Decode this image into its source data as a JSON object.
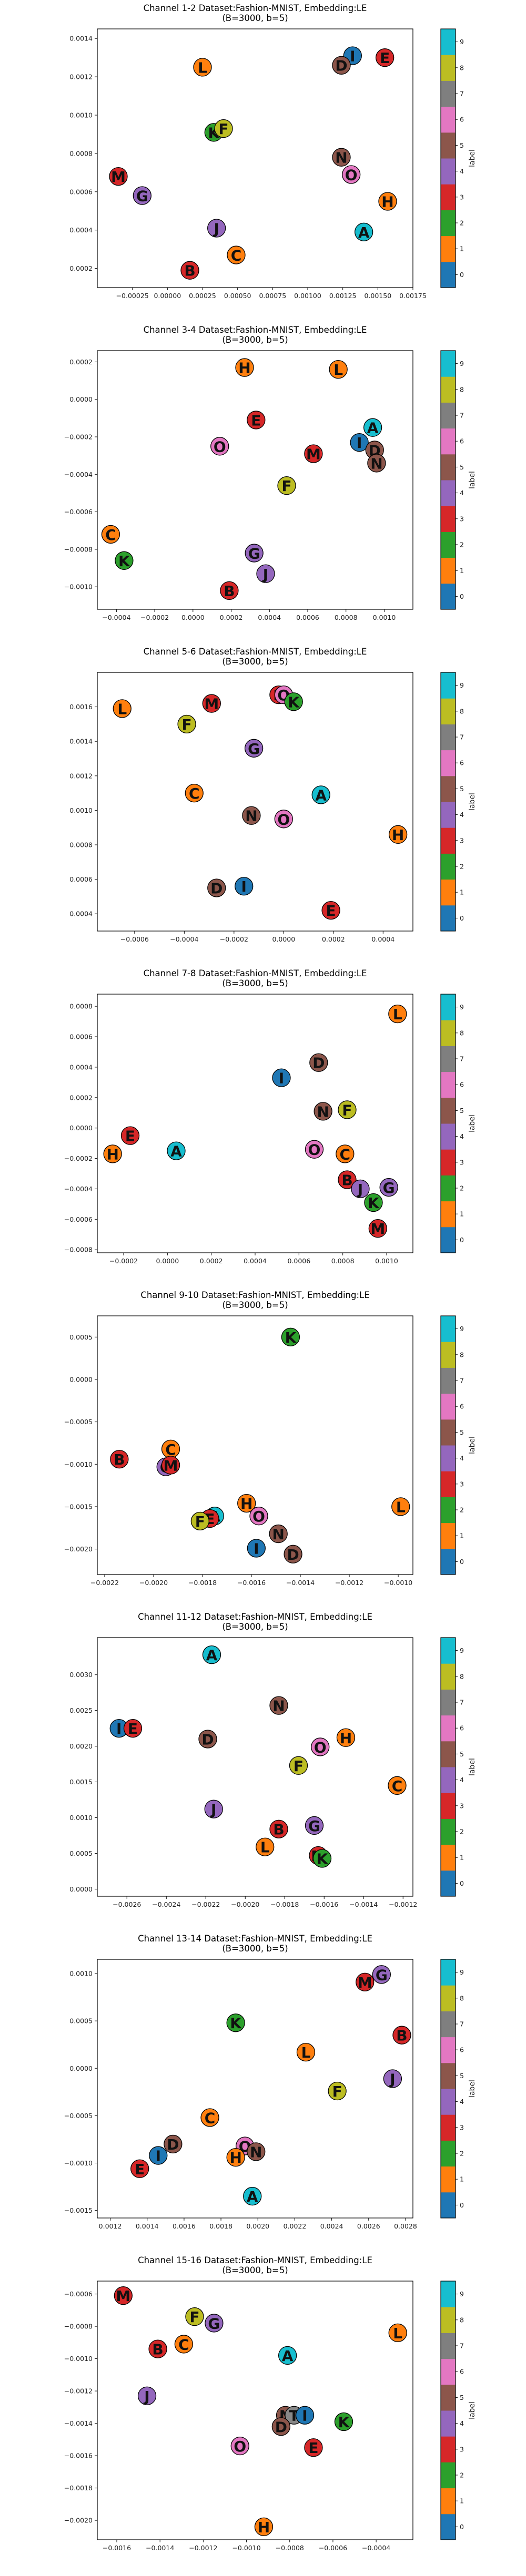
{
  "figure": {
    "colorbar": {
      "label": "label",
      "ticks": [
        0,
        1,
        2,
        3,
        4,
        5,
        6,
        7,
        8,
        9
      ],
      "colors": [
        "#1f77b4",
        "#ff7f0e",
        "#2ca02c",
        "#d62728",
        "#9467bd",
        "#8c564b",
        "#e377c2",
        "#7f7f7f",
        "#bcbd22",
        "#17becf"
      ]
    },
    "letter_colors": {
      "A": "#17becf",
      "B": "#d62728",
      "C": "#ff7f0e",
      "D": "#8c564b",
      "E": "#d62728",
      "F": "#bcbd22",
      "G": "#9467bd",
      "H": "#ff7f0e",
      "I": "#1f77b4",
      "J": "#9467bd",
      "K": "#2ca02c",
      "L": "#ff7f0e",
      "M": "#d62728",
      "N": "#8c564b",
      "O": "#e377c2"
    }
  },
  "chart_data": [
    {
      "type": "scatter",
      "title": "Channel 1-2 Dataset:Fashion-MNIST, Embedding:LE\n(B=3000, b=5)",
      "xlim": [
        -0.0005,
        0.00175
      ],
      "ylim": [
        0.0001,
        0.00145
      ],
      "xticks": [
        -0.00025,
        0.0,
        0.00025,
        0.0005,
        0.00075,
        0.001,
        0.00125,
        0.0015,
        0.00175
      ],
      "xtick_labels": [
        "−0.00025",
        "0.00000",
        "0.00025",
        "0.00050",
        "0.00075",
        "0.00100",
        "0.00125",
        "0.00150",
        "0.00175"
      ],
      "yticks": [
        0.0002,
        0.0004,
        0.0006,
        0.0008,
        0.001,
        0.0012,
        0.0014
      ],
      "ytick_labels": [
        "0.0002",
        "0.0004",
        "0.0006",
        "0.0008",
        "0.0010",
        "0.0012",
        "0.0014"
      ],
      "points": [
        {
          "label": "I",
          "x": 0.00132,
          "y": 0.00131
        },
        {
          "label": "D",
          "x": 0.00124,
          "y": 0.00126
        },
        {
          "label": "E",
          "x": 0.00155,
          "y": 0.0013
        },
        {
          "label": "L",
          "x": 0.00025,
          "y": 0.00125
        },
        {
          "label": "K",
          "x": 0.00033,
          "y": 0.00091
        },
        {
          "label": "F",
          "x": 0.0004,
          "y": 0.00093
        },
        {
          "label": "M",
          "x": -0.00035,
          "y": 0.00068
        },
        {
          "label": "G",
          "x": -0.00018,
          "y": 0.00058
        },
        {
          "label": "N",
          "x": 0.00124,
          "y": 0.00078
        },
        {
          "label": "O",
          "x": 0.00131,
          "y": 0.00069
        },
        {
          "label": "H",
          "x": 0.00157,
          "y": 0.00055
        },
        {
          "label": "J",
          "x": 0.00035,
          "y": 0.00041
        },
        {
          "label": "A",
          "x": 0.0014,
          "y": 0.00039
        },
        {
          "label": "C",
          "x": 0.00049,
          "y": 0.00027
        },
        {
          "label": "B",
          "x": 0.00016,
          "y": 0.00019
        }
      ]
    },
    {
      "type": "scatter",
      "title": "Channel 3-4 Dataset:Fashion-MNIST, Embedding:LE\n(B=3000, b=5)",
      "xlim": [
        -0.0005,
        0.00115
      ],
      "ylim": [
        -0.00112,
        0.00026
      ],
      "xticks": [
        -0.0004,
        -0.0002,
        0.0,
        0.0002,
        0.0004,
        0.0006,
        0.0008,
        0.001
      ],
      "xtick_labels": [
        "−0.0004",
        "−0.0002",
        "0.0000",
        "0.0002",
        "0.0004",
        "0.0006",
        "0.0008",
        "0.0010"
      ],
      "yticks": [
        -0.001,
        -0.0008,
        -0.0006,
        -0.0004,
        -0.0002,
        0.0,
        0.0002
      ],
      "ytick_labels": [
        "−0.0010",
        "−0.0008",
        "−0.0006",
        "−0.0004",
        "−0.0002",
        "0.0000",
        "0.0002"
      ],
      "points": [
        {
          "label": "H",
          "x": 0.00027,
          "y": 0.00017
        },
        {
          "label": "L",
          "x": 0.00076,
          "y": 0.00016
        },
        {
          "label": "E",
          "x": 0.00033,
          "y": -0.00011
        },
        {
          "label": "A",
          "x": 0.00094,
          "y": -0.00015
        },
        {
          "label": "O",
          "x": 0.00014,
          "y": -0.00025
        },
        {
          "label": "M",
          "x": 0.00063,
          "y": -0.00029
        },
        {
          "label": "I",
          "x": 0.00087,
          "y": -0.00023
        },
        {
          "label": "D",
          "x": 0.00095,
          "y": -0.00027
        },
        {
          "label": "N",
          "x": 0.00096,
          "y": -0.00034
        },
        {
          "label": "F",
          "x": 0.00049,
          "y": -0.00046
        },
        {
          "label": "C",
          "x": -0.00043,
          "y": -0.00072
        },
        {
          "label": "G",
          "x": 0.00032,
          "y": -0.00082
        },
        {
          "label": "K",
          "x": -0.00036,
          "y": -0.00086
        },
        {
          "label": "J",
          "x": 0.00038,
          "y": -0.00093
        },
        {
          "label": "B",
          "x": 0.00019,
          "y": -0.00102
        }
      ]
    },
    {
      "type": "scatter",
      "title": "Channel 5-6 Dataset:Fashion-MNIST, Embedding:LE\n(B=3000, b=5)",
      "xlim": [
        -0.00075,
        0.00052
      ],
      "ylim": [
        0.0003,
        0.0018
      ],
      "xticks": [
        -0.0006,
        -0.0004,
        -0.0002,
        0.0,
        0.0002,
        0.0004
      ],
      "xtick_labels": [
        "−0.0006",
        "−0.0004",
        "−0.0002",
        "0.0000",
        "0.0002",
        "0.0004"
      ],
      "yticks": [
        0.0004,
        0.0006,
        0.0008,
        0.001,
        0.0012,
        0.0014,
        0.0016
      ],
      "ytick_labels": [
        "0.0004",
        "0.0006",
        "0.0008",
        "0.0010",
        "0.0012",
        "0.0014",
        "0.0016"
      ],
      "points": [
        {
          "label": "B",
          "x": -2e-05,
          "y": 0.00167
        },
        {
          "label": "O",
          "x": 0.0,
          "y": 0.00167
        },
        {
          "label": "K",
          "x": 4e-05,
          "y": 0.00163
        },
        {
          "label": "M",
          "x": -0.00029,
          "y": 0.00162
        },
        {
          "label": "L",
          "x": -0.00065,
          "y": 0.00159
        },
        {
          "label": "F",
          "x": -0.00039,
          "y": 0.0015
        },
        {
          "label": "G",
          "x": -0.00012,
          "y": 0.00136
        },
        {
          "label": "C",
          "x": -0.00036,
          "y": 0.0011
        },
        {
          "label": "A",
          "x": 0.00015,
          "y": 0.00109
        },
        {
          "label": "N",
          "x": -0.00013,
          "y": 0.00097
        },
        {
          "label": "O",
          "x": 0.0,
          "y": 0.00095
        },
        {
          "label": "H",
          "x": 0.00046,
          "y": 0.00086
        },
        {
          "label": "D",
          "x": -0.00027,
          "y": 0.00055
        },
        {
          "label": "I",
          "x": -0.00016,
          "y": 0.00056
        },
        {
          "label": "E",
          "x": 0.00019,
          "y": 0.00042
        }
      ]
    },
    {
      "type": "scatter",
      "title": "Channel 7-8 Dataset:Fashion-MNIST, Embedding:LE\n(B=3000, b=5)",
      "xlim": [
        -0.00032,
        0.00112
      ],
      "ylim": [
        -0.00082,
        0.00088
      ],
      "xticks": [
        -0.0002,
        0.0,
        0.0002,
        0.0004,
        0.0006,
        0.0008,
        0.001
      ],
      "xtick_labels": [
        "−0.0002",
        "0.0000",
        "0.0002",
        "0.0004",
        "0.0006",
        "0.0008",
        "0.0010"
      ],
      "yticks": [
        -0.0008,
        -0.0006,
        -0.0004,
        -0.0002,
        0.0,
        0.0002,
        0.0004,
        0.0006,
        0.0008
      ],
      "ytick_labels": [
        "−0.0008",
        "−0.0006",
        "−0.0004",
        "−0.0002",
        "0.0000",
        "0.0002",
        "0.0004",
        "0.0006",
        "0.0008"
      ],
      "points": [
        {
          "label": "L",
          "x": 0.00105,
          "y": 0.00075
        },
        {
          "label": "D",
          "x": 0.00069,
          "y": 0.00043
        },
        {
          "label": "I",
          "x": 0.00052,
          "y": 0.00033
        },
        {
          "label": "N",
          "x": 0.00071,
          "y": 0.00011
        },
        {
          "label": "F",
          "x": 0.00082,
          "y": 0.00012
        },
        {
          "label": "E",
          "x": -0.00017,
          "y": -5e-05
        },
        {
          "label": "H",
          "x": -0.00025,
          "y": -0.00017
        },
        {
          "label": "A",
          "x": 4e-05,
          "y": -0.00015
        },
        {
          "label": "O",
          "x": 0.00067,
          "y": -0.00014
        },
        {
          "label": "C",
          "x": 0.00081,
          "y": -0.00017
        },
        {
          "label": "B",
          "x": 0.00082,
          "y": -0.00034
        },
        {
          "label": "J",
          "x": 0.00088,
          "y": -0.0004
        },
        {
          "label": "G",
          "x": 0.00101,
          "y": -0.00039
        },
        {
          "label": "K",
          "x": 0.00094,
          "y": -0.00049
        },
        {
          "label": "M",
          "x": 0.00096,
          "y": -0.00066
        }
      ]
    },
    {
      "type": "scatter",
      "title": "Channel 9-10 Dataset:Fashion-MNIST, Embedding:LE\n(B=3000, b=5)",
      "xlim": [
        -0.00223,
        -0.00094
      ],
      "ylim": [
        -0.0023,
        0.00075
      ],
      "xticks": [
        -0.0022,
        -0.002,
        -0.0018,
        -0.0016,
        -0.0014,
        -0.0012,
        -0.001
      ],
      "xtick_labels": [
        "−0.0022",
        "−0.0020",
        "−0.0018",
        "−0.0016",
        "−0.0014",
        "−0.0012",
        "−0.0010"
      ],
      "yticks": [
        -0.002,
        -0.0015,
        -0.001,
        -0.0005,
        0.0,
        0.0005
      ],
      "ytick_labels": [
        "−0.0020",
        "−0.0015",
        "−0.0010",
        "−0.0005",
        "0.0000",
        "0.0005"
      ],
      "points": [
        {
          "label": "K",
          "x": -0.00144,
          "y": 0.0005
        },
        {
          "label": "C",
          "x": -0.00193,
          "y": -0.00082
        },
        {
          "label": "B",
          "x": -0.00214,
          "y": -0.00094
        },
        {
          "label": "G",
          "x": -0.00195,
          "y": -0.00103
        },
        {
          "label": "M",
          "x": -0.00193,
          "y": -0.00101
        },
        {
          "label": "L",
          "x": -0.00099,
          "y": -0.0015
        },
        {
          "label": "H",
          "x": -0.00162,
          "y": -0.00146
        },
        {
          "label": "O",
          "x": -0.00157,
          "y": -0.00161
        },
        {
          "label": "A",
          "x": -0.00175,
          "y": -0.00161
        },
        {
          "label": "E",
          "x": -0.00177,
          "y": -0.00164
        },
        {
          "label": "F",
          "x": -0.00181,
          "y": -0.00167
        },
        {
          "label": "N",
          "x": -0.00149,
          "y": -0.00182
        },
        {
          "label": "I",
          "x": -0.00158,
          "y": -0.00199
        },
        {
          "label": "D",
          "x": -0.00143,
          "y": -0.00206
        }
      ]
    },
    {
      "type": "scatter",
      "title": "Channel 11-12 Dataset:Fashion-MNIST, Embedding:LE\n(B=3000, b=5)",
      "xlim": [
        -0.00275,
        -0.00115
      ],
      "ylim": [
        -0.0001,
        0.00352
      ],
      "xticks": [
        -0.0026,
        -0.0024,
        -0.0022,
        -0.002,
        -0.0018,
        -0.0016,
        -0.0014,
        -0.0012
      ],
      "xtick_labels": [
        "−0.0026",
        "−0.0024",
        "−0.0022",
        "−0.0020",
        "−0.0018",
        "−0.0016",
        "−0.0014",
        "−0.0012"
      ],
      "yticks": [
        0.0,
        0.0005,
        0.001,
        0.0015,
        0.002,
        0.0025,
        0.003
      ],
      "ytick_labels": [
        "0.0000",
        "0.0005",
        "0.0010",
        "0.0015",
        "0.0020",
        "0.0025",
        "0.0030"
      ],
      "points": [
        {
          "label": "A",
          "x": -0.00217,
          "y": 0.00328
        },
        {
          "label": "N",
          "x": -0.00183,
          "y": 0.00257
        },
        {
          "label": "I",
          "x": -0.00264,
          "y": 0.00225
        },
        {
          "label": "E",
          "x": -0.00257,
          "y": 0.00225
        },
        {
          "label": "D",
          "x": -0.00219,
          "y": 0.0021
        },
        {
          "label": "H",
          "x": -0.00149,
          "y": 0.00212
        },
        {
          "label": "O",
          "x": -0.00162,
          "y": 0.00199
        },
        {
          "label": "F",
          "x": -0.00173,
          "y": 0.00173
        },
        {
          "label": "C",
          "x": -0.00123,
          "y": 0.00145
        },
        {
          "label": "J",
          "x": -0.00216,
          "y": 0.00112
        },
        {
          "label": "G",
          "x": -0.00165,
          "y": 0.00089
        },
        {
          "label": "B",
          "x": -0.00183,
          "y": 0.00084
        },
        {
          "label": "L",
          "x": -0.0019,
          "y": 0.00059
        },
        {
          "label": "M",
          "x": -0.00163,
          "y": 0.00047
        },
        {
          "label": "K",
          "x": -0.00161,
          "y": 0.00043
        }
      ]
    },
    {
      "type": "scatter",
      "title": "Channel 13-14 Dataset:Fashion-MNIST, Embedding:LE\n(B=3000, b=5)",
      "xlim": [
        0.00113,
        0.00284
      ],
      "ylim": [
        -0.00158,
        0.00115
      ],
      "xticks": [
        0.0012,
        0.0014,
        0.0016,
        0.0018,
        0.002,
        0.0022,
        0.0024,
        0.0026,
        0.0028
      ],
      "xtick_labels": [
        "0.0012",
        "0.0014",
        "0.0016",
        "0.0018",
        "0.0020",
        "0.0022",
        "0.0024",
        "0.0026",
        "0.0028"
      ],
      "yticks": [
        -0.0015,
        -0.001,
        -0.0005,
        0.0,
        0.0005,
        0.001
      ],
      "ytick_labels": [
        "−0.0015",
        "−0.0010",
        "−0.0005",
        "0.0000",
        "0.0005",
        "0.0010"
      ],
      "points": [
        {
          "label": "G",
          "x": 0.00267,
          "y": 0.00099
        },
        {
          "label": "M",
          "x": 0.00258,
          "y": 0.00091
        },
        {
          "label": "B",
          "x": 0.00278,
          "y": 0.00035
        },
        {
          "label": "K",
          "x": 0.00188,
          "y": 0.00048
        },
        {
          "label": "L",
          "x": 0.00226,
          "y": 0.00017
        },
        {
          "label": "J",
          "x": 0.00273,
          "y": -0.00011
        },
        {
          "label": "F",
          "x": 0.00243,
          "y": -0.00024
        },
        {
          "label": "C",
          "x": 0.00174,
          "y": -0.00052
        },
        {
          "label": "O",
          "x": 0.00193,
          "y": -0.00082
        },
        {
          "label": "D",
          "x": 0.00154,
          "y": -0.0008
        },
        {
          "label": "N",
          "x": 0.00199,
          "y": -0.00088
        },
        {
          "label": "H",
          "x": 0.00188,
          "y": -0.00094
        },
        {
          "label": "I",
          "x": 0.00146,
          "y": -0.00092
        },
        {
          "label": "E",
          "x": 0.00136,
          "y": -0.00106
        },
        {
          "label": "A",
          "x": 0.00197,
          "y": -0.00135
        }
      ]
    },
    {
      "type": "scatter",
      "title": "Channel 15-16 Dataset:Fashion-MNIST, Embedding:LE\n(B=3000, b=5)",
      "xlim": [
        -0.00169,
        -0.00023
      ],
      "ylim": [
        -0.00212,
        -0.00052
      ],
      "xticks": [
        -0.0016,
        -0.0014,
        -0.0012,
        -0.001,
        -0.0008,
        -0.0006,
        -0.0004
      ],
      "xtick_labels": [
        "−0.0016",
        "−0.0014",
        "−0.0012",
        "−0.0010",
        "−0.0008",
        "−0.0006",
        "−0.0004"
      ],
      "yticks": [
        -0.002,
        -0.0018,
        -0.0016,
        -0.0014,
        -0.0012,
        -0.001,
        -0.0008,
        -0.0006
      ],
      "ytick_labels": [
        "−0.0020",
        "−0.0018",
        "−0.0016",
        "−0.0014",
        "−0.0012",
        "−0.0010",
        "−0.0008",
        "−0.0006"
      ],
      "points": [
        {
          "label": "M",
          "x": -0.00157,
          "y": -0.00061
        },
        {
          "label": "F",
          "x": -0.00124,
          "y": -0.00074
        },
        {
          "label": "G",
          "x": -0.00115,
          "y": -0.00078
        },
        {
          "label": "L",
          "x": -0.0003,
          "y": -0.00084
        },
        {
          "label": "C",
          "x": -0.00129,
          "y": -0.00091
        },
        {
          "label": "B",
          "x": -0.00141,
          "y": -0.00094
        },
        {
          "label": "A",
          "x": -0.00081,
          "y": -0.00098
        },
        {
          "label": "J",
          "x": -0.00146,
          "y": -0.00123
        },
        {
          "label": "N",
          "x": -0.00082,
          "y": -0.00135
        },
        {
          "label": "T",
          "x": -0.00078,
          "y": -0.00135
        },
        {
          "label": "I",
          "x": -0.00073,
          "y": -0.00135
        },
        {
          "label": "K",
          "x": -0.00055,
          "y": -0.00139
        },
        {
          "label": "D",
          "x": -0.00084,
          "y": -0.00142
        },
        {
          "label": "O",
          "x": -0.00103,
          "y": -0.00154
        },
        {
          "label": "E",
          "x": -0.00069,
          "y": -0.00155
        },
        {
          "label": "H",
          "x": -0.00092,
          "y": -0.00204
        }
      ]
    }
  ]
}
